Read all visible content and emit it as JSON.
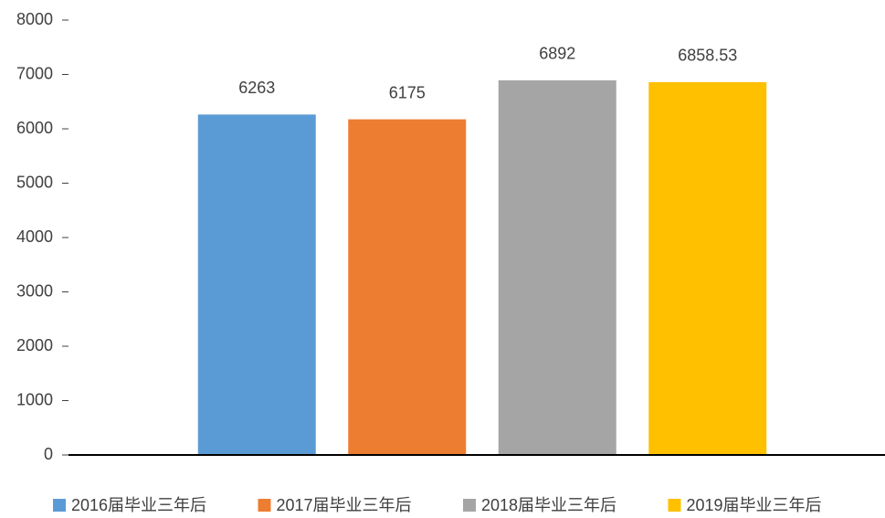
{
  "chart_data": {
    "type": "bar",
    "categories": [
      null
    ],
    "series": [
      {
        "name": "2016届毕业三年后",
        "color": "#5b9bd5",
        "values": [
          6263
        ]
      },
      {
        "name": "2017届毕业三年后",
        "color": "#ed7d31",
        "values": [
          6175
        ]
      },
      {
        "name": "2018届毕业三年后",
        "color": "#a5a5a5",
        "values": [
          6892
        ]
      },
      {
        "name": "2019届毕业三年后",
        "color": "#ffc000",
        "values": [
          6858.53
        ]
      }
    ],
    "ylim": [
      0,
      8000
    ],
    "yticks": [
      0,
      1000,
      2000,
      3000,
      4000,
      5000,
      6000,
      7000,
      8000
    ],
    "grid": false,
    "legend": "bottom"
  }
}
